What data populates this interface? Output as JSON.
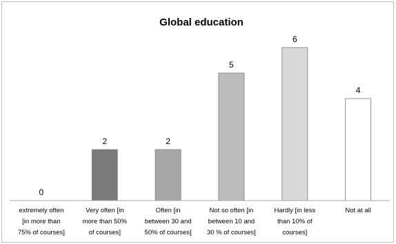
{
  "chart_data": {
    "type": "bar",
    "title": "Global education",
    "categories": [
      [
        "extremely often",
        "[in more than",
        "75% of courses]"
      ],
      [
        "Very often [in",
        "more than 50%",
        "of courses]"
      ],
      [
        "Often [in",
        "between 30 and",
        "50% of courses]"
      ],
      [
        "Not so often [in",
        "between 10 and",
        "30 % of courses]"
      ],
      [
        "Hardly [in less",
        "than 10% of",
        "courses]"
      ],
      [
        "Not at all"
      ]
    ],
    "values": [
      0,
      2,
      2,
      5,
      6,
      4
    ],
    "bar_colors": [
      "#000000",
      "#7a7a7a",
      "#a6a6a6",
      "#bcbcbc",
      "#d9d9d9",
      "#ffffff"
    ],
    "bar_stroke": "#8c8c8c",
    "ylim": [
      0,
      7
    ],
    "grid": false,
    "legend": "none",
    "xlabel": "",
    "ylabel": ""
  }
}
